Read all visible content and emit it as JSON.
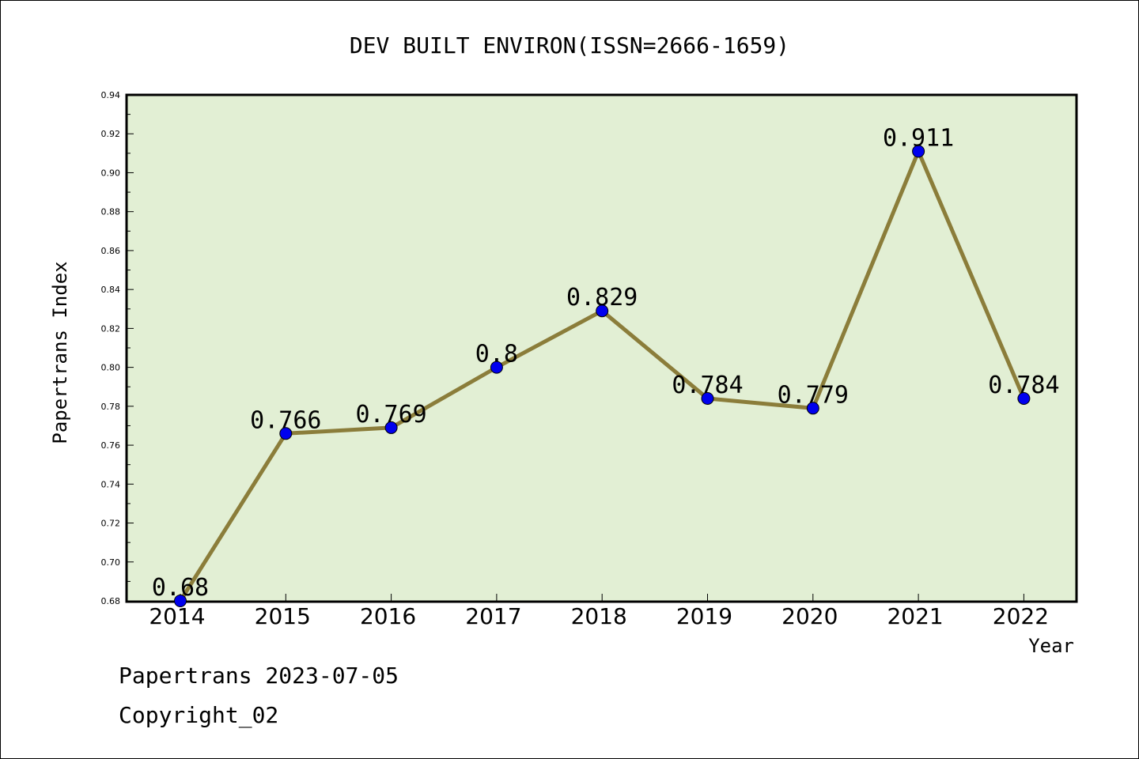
{
  "chart_data": {
    "type": "line",
    "title": "DEV BUILT ENVIRON(ISSN=2666-1659)",
    "xlabel": "Year",
    "ylabel": "Papertrans Index",
    "categories": [
      "2014",
      "2015",
      "2016",
      "2017",
      "2018",
      "2019",
      "2020",
      "2021",
      "2022"
    ],
    "series": [
      {
        "values": [
          0.68,
          0.766,
          0.769,
          0.8,
          0.829,
          0.784,
          0.779,
          0.911,
          0.784
        ],
        "labels": [
          "0.68",
          "0.766",
          "0.769",
          "0.8",
          "0.829",
          "0.784",
          "0.779",
          "0.911",
          "0.784"
        ]
      }
    ],
    "ylim": [
      0.68,
      0.94
    ],
    "yticks": [
      "0.68",
      "0.70",
      "0.72",
      "0.74",
      "0.76",
      "0.78",
      "0.80",
      "0.82",
      "0.84",
      "0.86",
      "0.88",
      "0.90",
      "0.92",
      "0.94"
    ],
    "grid": false,
    "colors": {
      "plot_background": "#e2efd4",
      "line": "#8b7d3a",
      "marker": "#0000ee"
    }
  },
  "footer": {
    "line1": "Papertrans 2023-07-05",
    "line2": "Copyright_02"
  }
}
